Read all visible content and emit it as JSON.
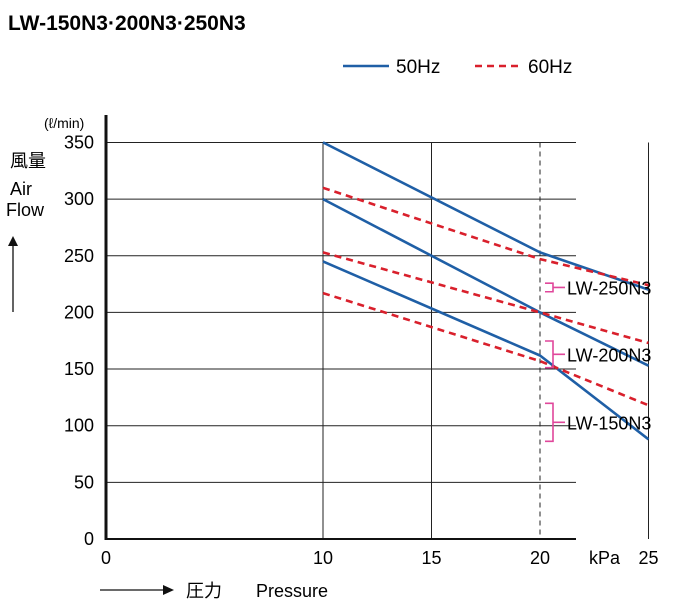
{
  "chart_data": {
    "type": "line",
    "title": "LW-150N3·200N3·250N3",
    "xlabel": "Pressure",
    "xlabel_jp": "圧力",
    "xunit": "kPa",
    "ylabel_jp": "風量",
    "ylabel": "Air Flow",
    "ylabel_line1": "Air",
    "ylabel_line2": "Flow",
    "yunit": "(ℓ/min)",
    "xlim": [
      0,
      25
    ],
    "ylim": [
      0,
      350
    ],
    "xticks": [
      0,
      10,
      15,
      20,
      25
    ],
    "yticks": [
      0,
      50,
      100,
      150,
      200,
      250,
      300,
      350
    ],
    "grid": "horizontal",
    "reference_line_x": 20,
    "legend": {
      "placement": "top-right",
      "items": [
        {
          "label": "50Hz",
          "style": "solid",
          "color": "#1f5fa6"
        },
        {
          "label": "60Hz",
          "style": "dashed",
          "color": "#d9202c"
        }
      ]
    },
    "models": [
      "LW-250N3",
      "LW-200N3",
      "LW-150N3"
    ],
    "bracket_color": "#e0479b",
    "series": [
      {
        "model": "LW-250N3",
        "freq": "50Hz",
        "style": "solid",
        "color": "#1f5fa6",
        "points": [
          [
            10,
            350
          ],
          [
            20,
            253
          ],
          [
            25,
            220
          ]
        ]
      },
      {
        "model": "LW-200N3",
        "freq": "50Hz",
        "style": "solid",
        "color": "#1f5fa6",
        "points": [
          [
            10,
            300
          ],
          [
            20,
            200
          ],
          [
            25,
            153
          ]
        ]
      },
      {
        "model": "LW-150N3",
        "freq": "50Hz",
        "style": "solid",
        "color": "#1f5fa6",
        "points": [
          [
            10,
            245
          ],
          [
            20,
            162
          ],
          [
            25,
            88
          ]
        ]
      },
      {
        "model": "LW-250N3",
        "freq": "60Hz",
        "style": "dashed",
        "color": "#d9202c",
        "points": [
          [
            10,
            310
          ],
          [
            20,
            247
          ],
          [
            25,
            224
          ]
        ]
      },
      {
        "model": "LW-200N3",
        "freq": "60Hz",
        "style": "dashed",
        "color": "#d9202c",
        "points": [
          [
            10,
            253
          ],
          [
            20,
            200
          ],
          [
            25,
            173
          ]
        ]
      },
      {
        "model": "LW-150N3",
        "freq": "60Hz",
        "style": "dashed",
        "color": "#d9202c",
        "points": [
          [
            10,
            217
          ],
          [
            20,
            157
          ],
          [
            25,
            118
          ]
        ]
      }
    ]
  }
}
